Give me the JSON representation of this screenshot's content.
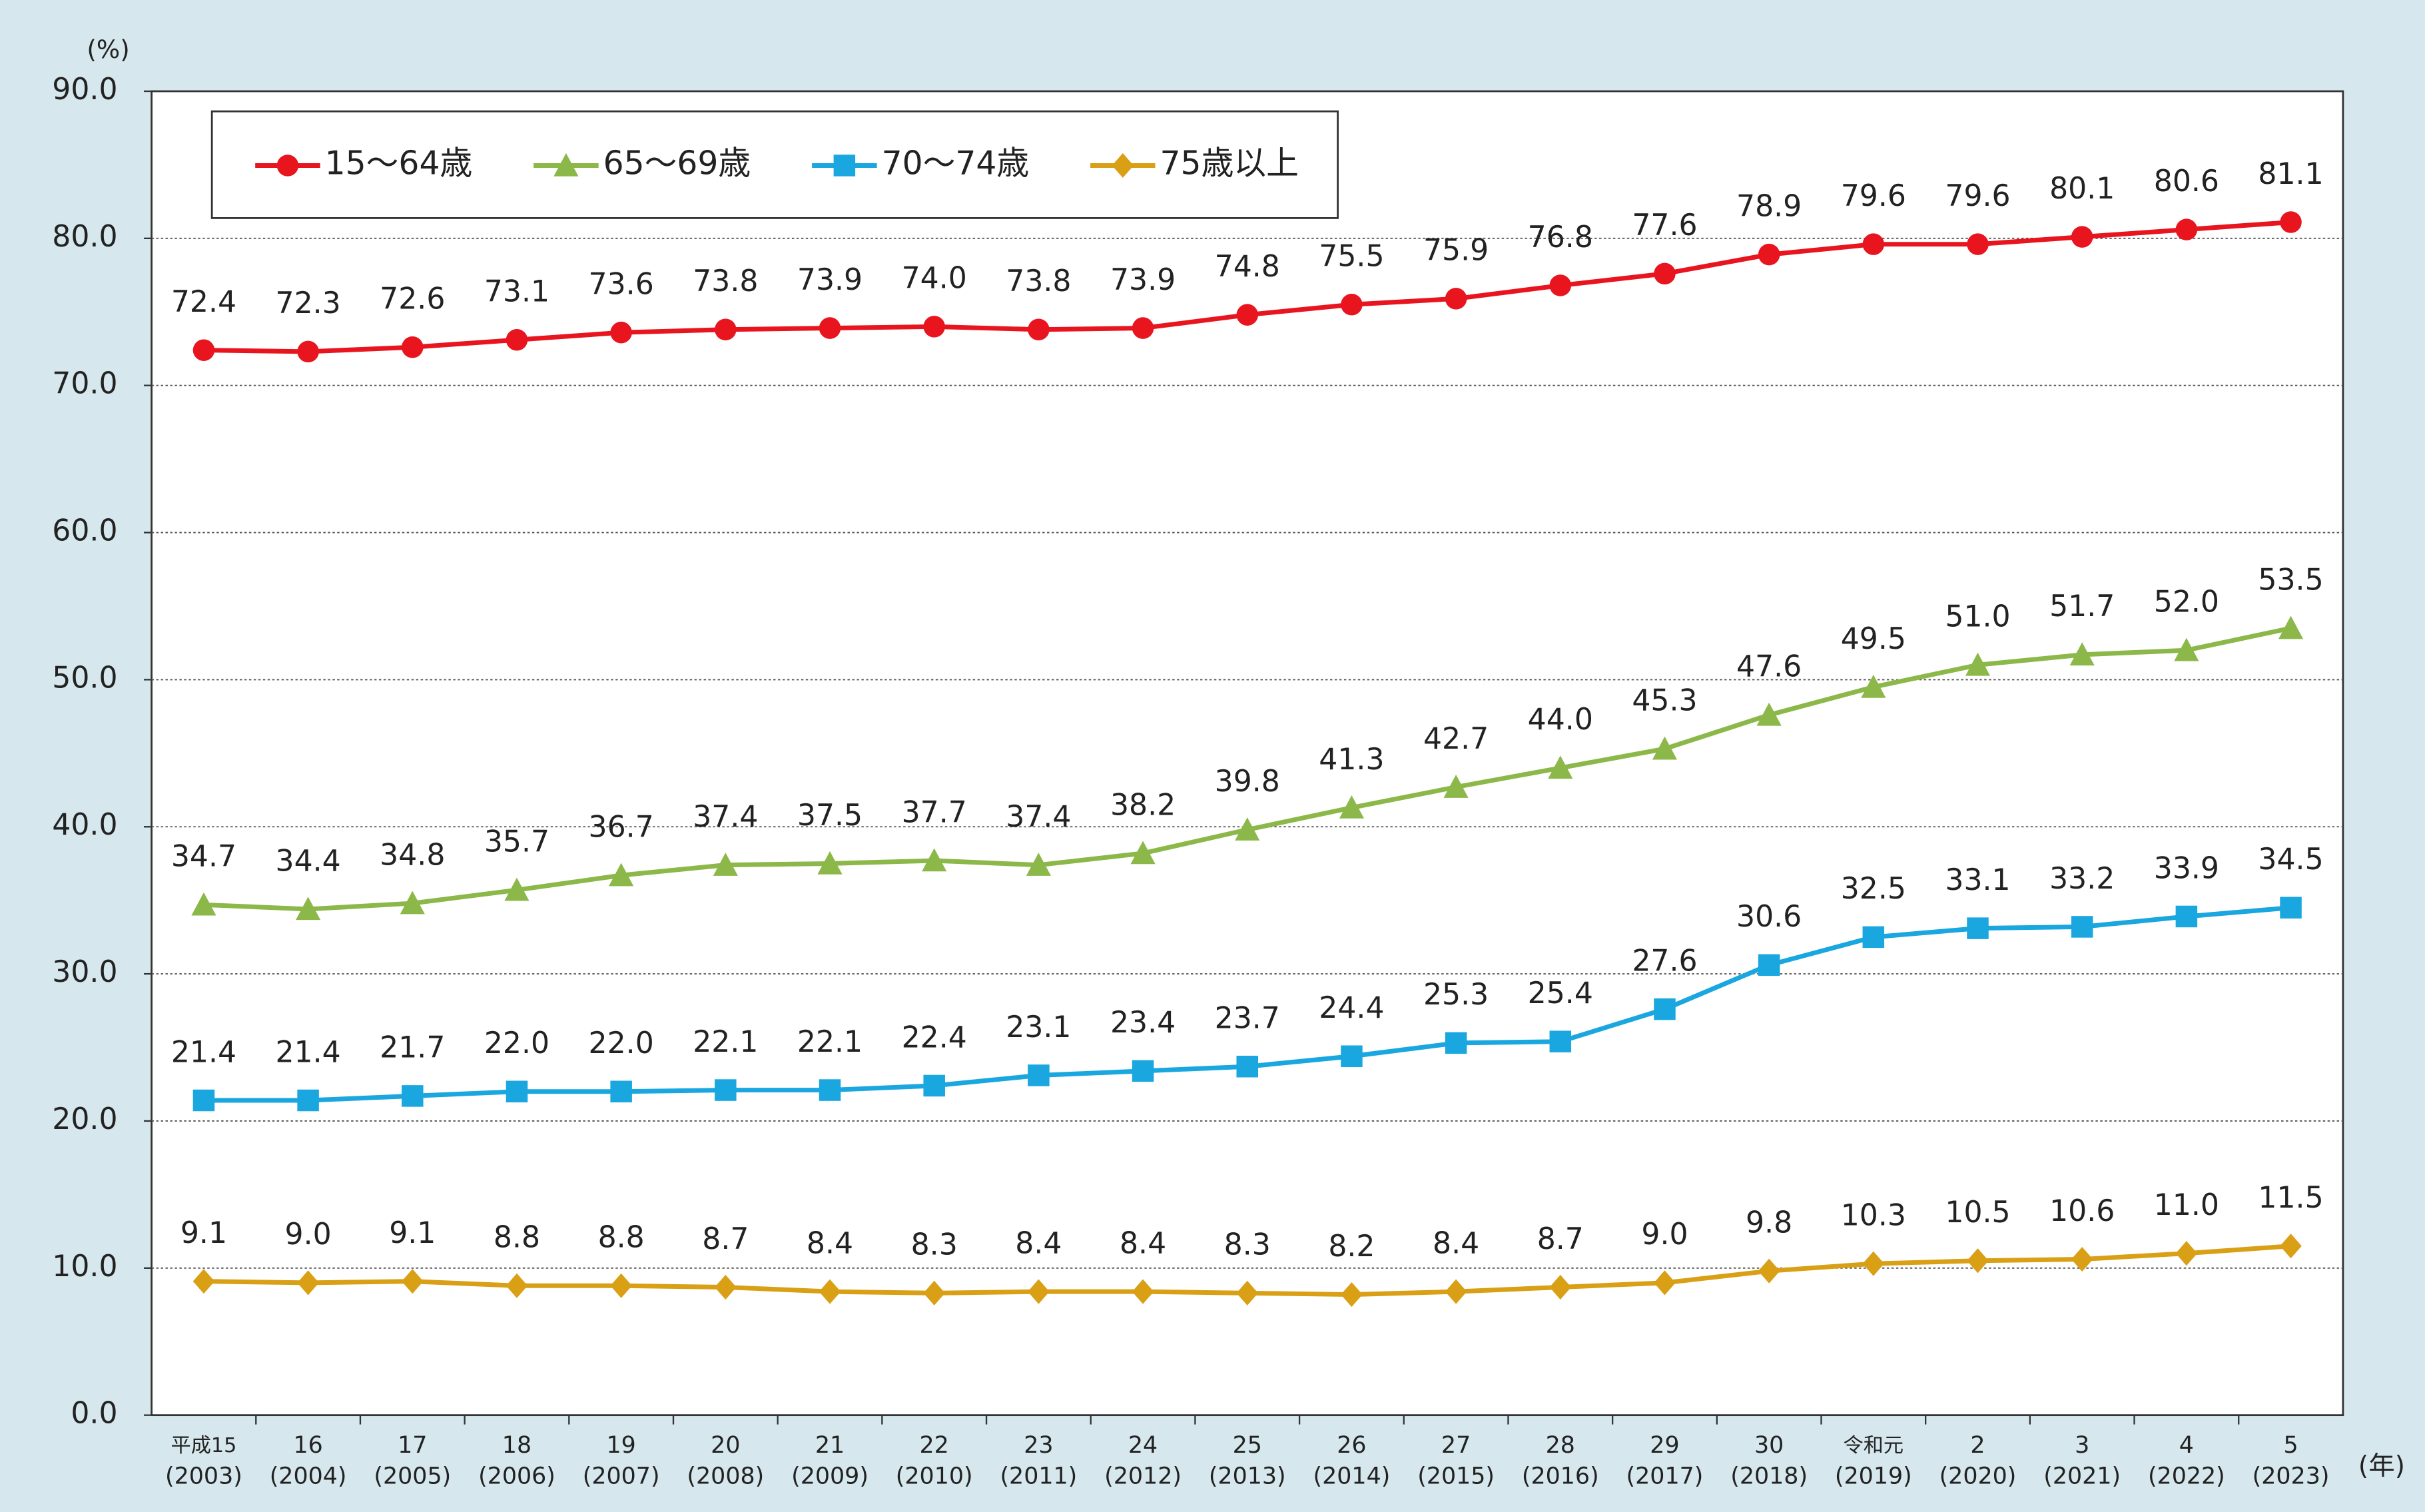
{
  "chart_data": {
    "type": "line",
    "y_unit": "(%)",
    "x_unit": "(年)",
    "categories": [
      [
        "平成15",
        "(2003)"
      ],
      [
        "16",
        "(2004)"
      ],
      [
        "17",
        "(2005)"
      ],
      [
        "18",
        "(2006)"
      ],
      [
        "19",
        "(2007)"
      ],
      [
        "20",
        "(2008)"
      ],
      [
        "21",
        "(2009)"
      ],
      [
        "22",
        "(2010)"
      ],
      [
        "23",
        "(2011)"
      ],
      [
        "24",
        "(2012)"
      ],
      [
        "25",
        "(2013)"
      ],
      [
        "26",
        "(2014)"
      ],
      [
        "27",
        "(2015)"
      ],
      [
        "28",
        "(2016)"
      ],
      [
        "29",
        "(2017)"
      ],
      [
        "30",
        "(2018)"
      ],
      [
        "令和元",
        "(2019)"
      ],
      [
        "2",
        "(2020)"
      ],
      [
        "3",
        "(2021)"
      ],
      [
        "4",
        "(2022)"
      ],
      [
        "5",
        "(2023)"
      ]
    ],
    "ylim": [
      0,
      90
    ],
    "yticks": [
      {
        "value": 0,
        "label": "0.0"
      },
      {
        "value": 10,
        "label": "10.0"
      },
      {
        "value": 20,
        "label": "20.0"
      },
      {
        "value": 30,
        "label": "30.0"
      },
      {
        "value": 40,
        "label": "40.0"
      },
      {
        "value": 50,
        "label": "50.0"
      },
      {
        "value": 60,
        "label": "60.0"
      },
      {
        "value": 70,
        "label": "70.0"
      },
      {
        "value": 80,
        "label": "80.0"
      },
      {
        "value": 90,
        "label": "90.0"
      }
    ],
    "grid": true,
    "legend": "top-left",
    "series": [
      {
        "name": "15～64歳",
        "color": "#e8141e",
        "marker": "circle",
        "values": [
          72.4,
          72.3,
          72.6,
          73.1,
          73.6,
          73.8,
          73.9,
          74.0,
          73.8,
          73.9,
          74.8,
          75.5,
          75.9,
          76.8,
          77.6,
          78.9,
          79.6,
          79.6,
          80.1,
          80.6,
          81.1
        ],
        "value_labels": [
          "72.4",
          "72.3",
          "72.6",
          "73.1",
          "73.6",
          "73.8",
          "73.9",
          "74.0",
          "73.8",
          "73.9",
          "74.8",
          "75.5",
          "75.9",
          "76.8",
          "77.6",
          "78.9",
          "79.6",
          "79.6",
          "80.1",
          "80.6",
          "81.1"
        ]
      },
      {
        "name": "65～69歳",
        "color": "#8cb84a",
        "marker": "triangle",
        "values": [
          34.7,
          34.4,
          34.8,
          35.7,
          36.7,
          37.4,
          37.5,
          37.7,
          37.4,
          38.2,
          39.8,
          41.3,
          42.7,
          44.0,
          45.3,
          47.6,
          49.5,
          51.0,
          51.7,
          52.0,
          53.5
        ],
        "value_labels": [
          "34.7",
          "34.4",
          "34.8",
          "35.7",
          "36.7",
          "37.4",
          "37.5",
          "37.7",
          "37.4",
          "38.2",
          "39.8",
          "41.3",
          "42.7",
          "44.0",
          "45.3",
          "47.6",
          "49.5",
          "51.0",
          "51.7",
          "52.0",
          "53.5"
        ]
      },
      {
        "name": "70～74歳",
        "color": "#1aa7e0",
        "marker": "square",
        "values": [
          21.4,
          21.4,
          21.7,
          22.0,
          22.0,
          22.1,
          22.1,
          22.4,
          23.1,
          23.4,
          23.7,
          24.4,
          25.3,
          25.4,
          27.6,
          30.6,
          32.5,
          33.1,
          33.2,
          33.9,
          34.5
        ],
        "value_labels": [
          "21.4",
          "21.4",
          "21.7",
          "22.0",
          "22.0",
          "22.1",
          "22.1",
          "22.4",
          "23.1",
          "23.4",
          "23.7",
          "24.4",
          "25.3",
          "25.4",
          "27.6",
          "30.6",
          "32.5",
          "33.1",
          "33.2",
          "33.9",
          "34.5"
        ]
      },
      {
        "name": "75歳以上",
        "color": "#d9a016",
        "marker": "diamond",
        "values": [
          9.1,
          9.0,
          9.1,
          8.8,
          8.8,
          8.7,
          8.4,
          8.3,
          8.4,
          8.4,
          8.3,
          8.2,
          8.4,
          8.7,
          9.0,
          9.8,
          10.3,
          10.5,
          10.6,
          11.0,
          11.5
        ],
        "value_labels": [
          "9.1",
          "9.0",
          "9.1",
          "8.8",
          "8.8",
          "8.7",
          "8.4",
          "8.3",
          "8.4",
          "8.4",
          "8.3",
          "8.2",
          "8.4",
          "8.7",
          "9.0",
          "9.8",
          "10.3",
          "10.5",
          "10.6",
          "11.0",
          "11.5"
        ]
      }
    ]
  }
}
